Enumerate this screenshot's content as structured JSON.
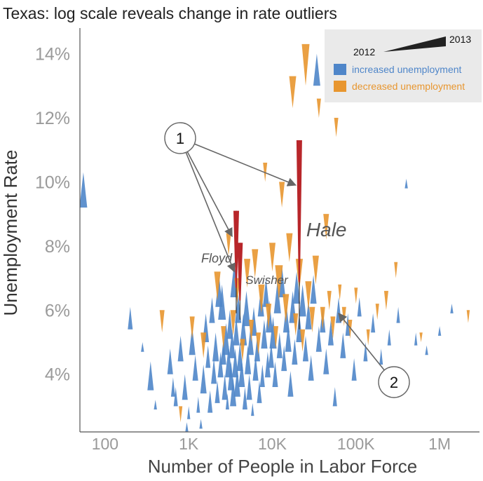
{
  "colors": {
    "increased": "#4f86c9",
    "decreased": "#e8962f",
    "highlight": "#b8262a",
    "axis": "#555555",
    "arrow": "#666666",
    "legend_bg": "#eaeaea"
  },
  "chart_data": {
    "type": "scatter",
    "title": "Texas: log scale reveals change in rate outliers",
    "xlabel": "Number of People in Labor Force",
    "ylabel": "Unemployment Rate",
    "x_scale": "log",
    "xlim": [
      50,
      3000000
    ],
    "ylim": [
      2.2,
      14.8
    ],
    "x_ticks": [
      {
        "value": 100,
        "label": "100"
      },
      {
        "value": 1000,
        "label": "1K"
      },
      {
        "value": 10000,
        "label": "10K"
      },
      {
        "value": 100000,
        "label": "100K"
      },
      {
        "value": 1000000,
        "label": "1M"
      }
    ],
    "y_ticks": [
      {
        "value": 4,
        "label": "4%"
      },
      {
        "value": 6,
        "label": "6%"
      },
      {
        "value": 8,
        "label": "8%"
      },
      {
        "value": 10,
        "label": "10%"
      },
      {
        "value": 12,
        "label": "12%"
      },
      {
        "value": 14,
        "label": "14%"
      }
    ],
    "grid": false,
    "legend": {
      "position": "top-right",
      "year_start": "2012",
      "year_end": "2013",
      "items": [
        {
          "key": "increased",
          "label": "increased unemployment"
        },
        {
          "key": "decreased",
          "label": "decreased unemployment"
        }
      ]
    },
    "series": [
      {
        "name": "increased unemployment",
        "key": "increased",
        "points": [
          [
            55,
            10.3,
            9.2
          ],
          [
            200,
            6.1,
            5.4
          ],
          [
            280,
            5.0,
            4.7
          ],
          [
            350,
            4.4,
            3.5
          ],
          [
            400,
            3.2,
            2.9
          ],
          [
            600,
            4.8,
            4.0
          ],
          [
            650,
            3.9,
            3.3
          ],
          [
            700,
            3.6,
            3.0
          ],
          [
            800,
            5.2,
            4.4
          ],
          [
            900,
            4.0,
            3.2
          ],
          [
            950,
            2.5,
            2.2
          ],
          [
            1000,
            3.0,
            2.6
          ],
          [
            1100,
            5.5,
            4.6
          ],
          [
            1200,
            4.6,
            3.8
          ],
          [
            1300,
            3.3,
            2.8
          ],
          [
            1400,
            2.6,
            2.3
          ],
          [
            1500,
            4.3,
            3.4
          ],
          [
            1600,
            5.9,
            5.0
          ],
          [
            1700,
            4.9,
            4.2
          ],
          [
            1800,
            3.5,
            2.8
          ],
          [
            1900,
            6.4,
            5.6
          ],
          [
            2000,
            4.5,
            3.7
          ],
          [
            2100,
            5.3,
            4.4
          ],
          [
            2200,
            3.8,
            3.1
          ],
          [
            2300,
            7.1,
            6.1
          ],
          [
            2400,
            4.7,
            3.9
          ],
          [
            2500,
            6.8,
            5.7
          ],
          [
            2600,
            5.1,
            4.3
          ],
          [
            2700,
            4.0,
            3.2
          ],
          [
            2800,
            5.6,
            4.6
          ],
          [
            2900,
            3.4,
            2.9
          ],
          [
            3000,
            4.9,
            3.9
          ],
          [
            3100,
            6.0,
            5.1
          ],
          [
            3200,
            4.4,
            3.5
          ],
          [
            3300,
            5.4,
            4.5
          ],
          [
            3400,
            3.9,
            3.0
          ],
          [
            3500,
            7.5,
            6.4
          ],
          [
            3600,
            4.8,
            3.9
          ],
          [
            3700,
            5.8,
            4.9
          ],
          [
            3800,
            4.2,
            3.3
          ],
          [
            3900,
            6.5,
            5.6
          ],
          [
            4100,
            5.0,
            4.1
          ],
          [
            4300,
            4.5,
            3.6
          ],
          [
            4500,
            5.9,
            4.9
          ],
          [
            4700,
            3.6,
            2.9
          ],
          [
            4900,
            6.6,
            5.5
          ],
          [
            5100,
            4.9,
            4.0
          ],
          [
            5300,
            4.0,
            3.2
          ],
          [
            5500,
            5.5,
            4.6
          ],
          [
            5800,
            3.1,
            2.7
          ],
          [
            6000,
            6.1,
            5.2
          ],
          [
            6300,
            4.6,
            3.8
          ],
          [
            6600,
            5.2,
            4.4
          ],
          [
            7000,
            3.8,
            3.1
          ],
          [
            7300,
            6.7,
            5.8
          ],
          [
            7600,
            4.3,
            3.6
          ],
          [
            8000,
            5.7,
            4.8
          ],
          [
            8400,
            7.0,
            6.1
          ],
          [
            8800,
            4.7,
            3.9
          ],
          [
            9200,
            6.3,
            5.3
          ],
          [
            9700,
            5.0,
            4.2
          ],
          [
            10200,
            5.8,
            4.8
          ],
          [
            10800,
            4.4,
            3.6
          ],
          [
            11500,
            6.9,
            5.9
          ],
          [
            12200,
            5.3,
            4.5
          ],
          [
            13000,
            7.4,
            6.4
          ],
          [
            13800,
            4.9,
            4.1
          ],
          [
            14700,
            6.2,
            5.3
          ],
          [
            15500,
            5.6,
            4.7
          ],
          [
            16500,
            4.1,
            3.3
          ],
          [
            17500,
            6.6,
            5.6
          ],
          [
            18500,
            5.1,
            4.3
          ],
          [
            19500,
            7.2,
            6.2
          ],
          [
            21000,
            5.9,
            5.0
          ],
          [
            23000,
            6.8,
            5.8
          ],
          [
            25000,
            5.2,
            4.4
          ],
          [
            27000,
            6.3,
            5.4
          ],
          [
            29000,
            4.6,
            3.8
          ],
          [
            31000,
            7.1,
            6.2
          ],
          [
            34000,
            14.0,
            13.0
          ],
          [
            36000,
            5.5,
            4.7
          ],
          [
            40000,
            6.1,
            5.3
          ],
          [
            44000,
            4.8,
            4.0
          ],
          [
            50000,
            5.7,
            4.9
          ],
          [
            56000,
            3.6,
            3.0
          ],
          [
            62000,
            6.4,
            5.6
          ],
          [
            70000,
            5.3,
            4.5
          ],
          [
            80000,
            5.9,
            5.2
          ],
          [
            95000,
            4.5,
            3.8
          ],
          [
            110000,
            6.4,
            5.8
          ],
          [
            130000,
            5.0,
            4.4
          ],
          [
            160000,
            5.9,
            5.3
          ],
          [
            200000,
            4.8,
            4.3
          ],
          [
            250000,
            5.4,
            4.9
          ],
          [
            320000,
            6.1,
            5.6
          ],
          [
            400000,
            10.1,
            9.8
          ],
          [
            520000,
            5.3,
            4.9
          ],
          [
            700000,
            4.9,
            4.6
          ],
          [
            1000000,
            5.5,
            5.2
          ],
          [
            1400000,
            6.2,
            5.9
          ]
        ]
      },
      {
        "name": "decreased unemployment",
        "key": "decreased",
        "points": [
          [
            480,
            5.3,
            6.0
          ],
          [
            800,
            2.5,
            3.0
          ],
          [
            1100,
            5.1,
            5.8
          ],
          [
            1500,
            4.5,
            5.3
          ],
          [
            2200,
            6.3,
            7.2
          ],
          [
            2600,
            4.8,
            5.5
          ],
          [
            3000,
            7.7,
            8.4
          ],
          [
            3400,
            5.2,
            6.0
          ],
          [
            3800,
            6.2,
            7.0
          ],
          [
            4400,
            4.4,
            5.1
          ],
          [
            5000,
            6.7,
            7.6
          ],
          [
            5600,
            5.0,
            5.7
          ],
          [
            6200,
            7.0,
            7.9
          ],
          [
            6800,
            4.6,
            5.3
          ],
          [
            7400,
            5.9,
            6.8
          ],
          [
            8200,
            10.0,
            10.6
          ],
          [
            9000,
            5.4,
            6.2
          ],
          [
            10000,
            7.2,
            8.1
          ],
          [
            11000,
            4.8,
            5.5
          ],
          [
            12000,
            6.3,
            7.4
          ],
          [
            13000,
            9.2,
            10.0
          ],
          [
            14500,
            5.6,
            6.5
          ],
          [
            16000,
            7.5,
            8.4
          ],
          [
            17500,
            12.3,
            13.3
          ],
          [
            19000,
            5.2,
            5.9
          ],
          [
            21000,
            6.6,
            7.6
          ],
          [
            23000,
            4.7,
            5.4
          ],
          [
            25000,
            13.0,
            14.3
          ],
          [
            27000,
            6.0,
            6.9
          ],
          [
            30000,
            5.3,
            6.1
          ],
          [
            33000,
            6.8,
            7.7
          ],
          [
            36000,
            12.0,
            12.6
          ],
          [
            40000,
            5.4,
            6.1
          ],
          [
            44000,
            8.2,
            9.0
          ],
          [
            48000,
            6.0,
            6.6
          ],
          [
            53000,
            5.1,
            5.8
          ],
          [
            58000,
            11.4,
            12.0
          ],
          [
            64000,
            6.3,
            6.8
          ],
          [
            72000,
            5.5,
            6.1
          ],
          [
            85000,
            5.1,
            5.7
          ],
          [
            100000,
            6.2,
            6.7
          ],
          [
            140000,
            4.9,
            5.4
          ],
          [
            180000,
            5.7,
            6.2
          ],
          [
            230000,
            6.0,
            6.6
          ],
          [
            300000,
            7.0,
            7.5
          ],
          [
            420000,
            12.8,
            14.0
          ],
          [
            600000,
            5.0,
            5.3
          ],
          [
            2200000,
            5.6,
            6.0
          ]
        ]
      }
    ],
    "highlighted": [
      {
        "name": "Floyd",
        "x": 3700,
        "y_2012": 5.9,
        "y_2013": 9.1
      },
      {
        "name": "Swisher",
        "x": 4100,
        "y_2012": 5.7,
        "y_2013": 8.1
      },
      {
        "name": "Hale",
        "x": 21000,
        "y_2012": 5.4,
        "y_2013": 11.3
      }
    ],
    "annotations": [
      {
        "label": "1",
        "targets": [
          [
            3500,
            7.2
          ],
          [
            3300,
            8.3
          ],
          [
            19000,
            9.9
          ]
        ]
      },
      {
        "label": "2",
        "targets": [
          [
            62000,
            5.9
          ]
        ]
      }
    ]
  }
}
